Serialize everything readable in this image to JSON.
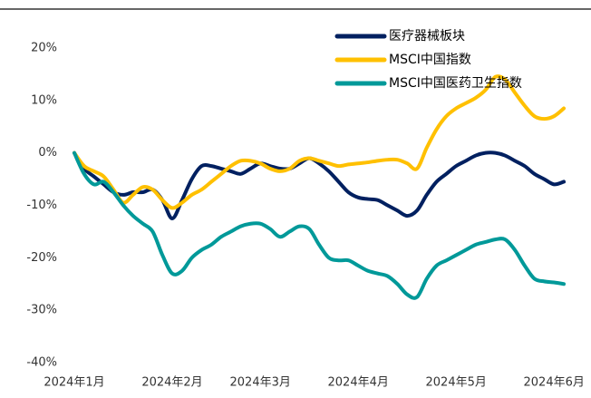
{
  "chart_data": {
    "type": "line",
    "categories": [
      "2024年1月",
      null,
      null,
      null,
      null,
      null,
      null,
      null,
      null,
      null,
      "2024年2月",
      null,
      null,
      null,
      null,
      null,
      null,
      null,
      null,
      "2024年3月",
      null,
      null,
      null,
      null,
      null,
      null,
      null,
      null,
      null,
      "2024年4月",
      null,
      null,
      null,
      null,
      null,
      null,
      null,
      null,
      null,
      "2024年5月",
      null,
      null,
      null,
      null,
      null,
      null,
      null,
      null,
      null,
      "2024年6月",
      null
    ],
    "series": [
      {
        "name": "医疗器械板块",
        "color": "#002060",
        "values": [
          0,
          -3,
          -4.5,
          -6,
          -7.5,
          -8,
          -7.5,
          -7.5,
          -7,
          -9,
          -12.5,
          -9,
          -5,
          -2.5,
          -2.5,
          -3,
          -3.5,
          -4,
          -3,
          -2,
          -2.5,
          -3,
          -3,
          -2,
          -1,
          -2,
          -3.5,
          -5.5,
          -7.5,
          -8.5,
          -8.8,
          -9,
          -10,
          -11,
          -12,
          -11,
          -8,
          -5.5,
          -4,
          -2.5,
          -1.5,
          -0.5,
          0,
          0,
          -0.5,
          -1.5,
          -2.5,
          -4,
          -5,
          -6,
          -5.5
        ]
      },
      {
        "name": "MSCI中国指数",
        "color": "#FFC000",
        "values": [
          0,
          -2.5,
          -3.5,
          -4.5,
          -7,
          -9.5,
          -8,
          -6.5,
          -7,
          -9,
          -10.5,
          -9.5,
          -8,
          -7,
          -5.5,
          -4,
          -2.5,
          -1.5,
          -1.5,
          -2,
          -3,
          -3.5,
          -3,
          -1.5,
          -1,
          -1.5,
          -2,
          -2.5,
          -2.2,
          -2,
          -1.8,
          -1.5,
          -1.3,
          -1.3,
          -2,
          -3,
          1,
          4.5,
          7,
          8.5,
          9.5,
          10.5,
          12,
          14.5,
          14,
          11.5,
          9,
          7,
          6.5,
          7,
          8.5
        ]
      },
      {
        "name": "MSCI中国医药卫生指数",
        "color": "#009999",
        "values": [
          0,
          -4,
          -6,
          -5.5,
          -7.5,
          -10,
          -12,
          -13.5,
          -15,
          -19.5,
          -23,
          -22.5,
          -20,
          -18.5,
          -17.5,
          -16,
          -15,
          -14,
          -13.5,
          -13.5,
          -14.5,
          -16,
          -15,
          -14,
          -14.5,
          -17.5,
          -20,
          -20.5,
          -20.5,
          -21.5,
          -22.5,
          -23,
          -23.5,
          -25,
          -27,
          -27.5,
          -24,
          -21.5,
          -20.5,
          -19.5,
          -18.5,
          -17.5,
          -17,
          -16.5,
          -16.5,
          -18.5,
          -21.5,
          -24,
          -24.5,
          -24.7,
          -25
        ]
      }
    ],
    "ylim": [
      -40,
      20
    ],
    "yticks": [
      {
        "value": 20,
        "label": "20%"
      },
      {
        "value": 10,
        "label": "10%"
      },
      {
        "value": 0,
        "label": "0%"
      },
      {
        "value": -10,
        "label": "-10%"
      },
      {
        "value": -20,
        "label": "-20%"
      },
      {
        "value": -30,
        "label": "-30%"
      },
      {
        "value": -40,
        "label": "-40%"
      }
    ],
    "grid": false,
    "legend": "upper right"
  }
}
